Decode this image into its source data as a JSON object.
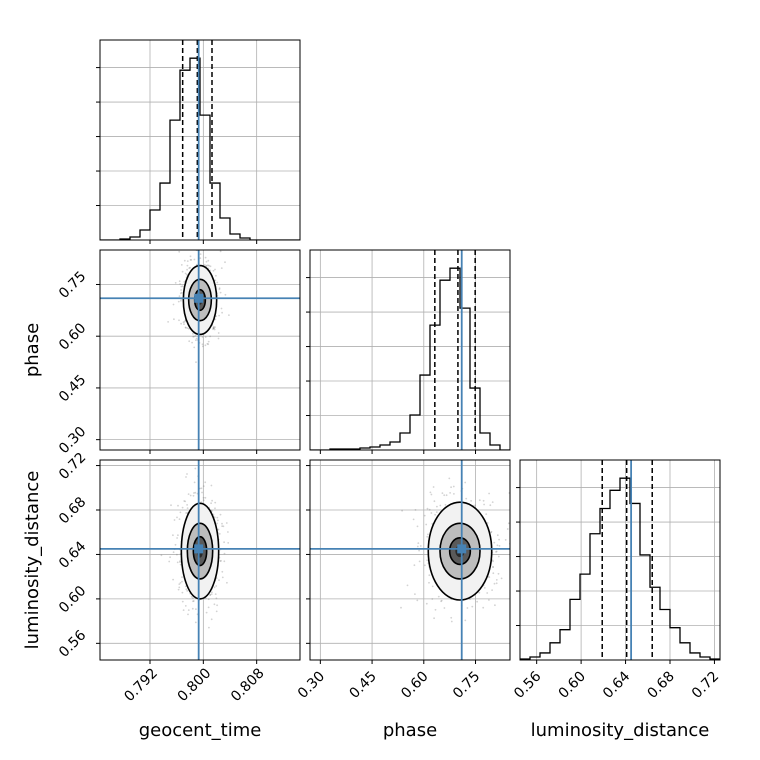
{
  "chart_data": {
    "type": "corner",
    "parameters": [
      "geocent_time",
      "phase",
      "luminosity_distance"
    ],
    "axis_labels": {
      "geocent_time": "geocent_time",
      "phase": "phase",
      "luminosity_distance": "luminosity_distance"
    },
    "ranges": {
      "geocent_time": [
        0.7845,
        0.8145
      ],
      "phase": [
        0.27,
        0.85
      ],
      "luminosity_distance": [
        0.545,
        0.725
      ]
    },
    "ticks": {
      "geocent_time": [
        "0.792",
        "0.800",
        "0.808"
      ],
      "phase": [
        "0.30",
        "0.45",
        "0.60",
        "0.75"
      ],
      "luminosity_distance": [
        "0.56",
        "0.60",
        "0.64",
        "0.68",
        "0.72"
      ]
    },
    "injection": {
      "geocent_time": 0.7993,
      "phase": 0.71,
      "luminosity_distance": 0.645
    },
    "quantiles": {
      "geocent_time": [
        0.7969,
        0.7991,
        0.8013
      ],
      "phase": [
        0.632,
        0.699,
        0.749
      ],
      "luminosity_distance": [
        0.619,
        0.641,
        0.664
      ]
    },
    "histograms": {
      "geocent_time": {
        "edges": [
          0.7845,
          0.786,
          0.7875,
          0.789,
          0.7905,
          0.792,
          0.7935,
          0.795,
          0.7965,
          0.798,
          0.7995,
          0.801,
          0.8025,
          0.804,
          0.8055,
          0.807,
          0.8085,
          0.81,
          0.8115,
          0.813,
          0.8145
        ],
        "counts": [
          0,
          0,
          1,
          3,
          10,
          30,
          57,
          120,
          170,
          182,
          125,
          57,
          22,
          6,
          2,
          0,
          0,
          0,
          0,
          0
        ]
      },
      "phase": {
        "edges": [
          0.27,
          0.299,
          0.328,
          0.357,
          0.386,
          0.415,
          0.444,
          0.473,
          0.502,
          0.531,
          0.56,
          0.589,
          0.618,
          0.647,
          0.676,
          0.705,
          0.734,
          0.763,
          0.792,
          0.821,
          0.85
        ],
        "counts": [
          0,
          0,
          1,
          1,
          1,
          2,
          3,
          5,
          8,
          17,
          35,
          75,
          125,
          170,
          182,
          142,
          62,
          17,
          5,
          0
        ]
      },
      "luminosity_distance": {
        "edges": [
          0.545,
          0.554,
          0.563,
          0.572,
          0.581,
          0.59,
          0.599,
          0.608,
          0.617,
          0.626,
          0.635,
          0.644,
          0.653,
          0.662,
          0.671,
          0.68,
          0.689,
          0.698,
          0.707,
          0.716,
          0.725
        ],
        "counts": [
          1,
          3,
          7,
          17,
          30,
          60,
          85,
          125,
          150,
          168,
          180,
          155,
          104,
          72,
          50,
          32,
          17,
          7,
          3,
          1
        ]
      }
    },
    "contours": [
      {
        "x": "geocent_time",
        "y": "phase",
        "center": [
          0.7995,
          0.705
        ],
        "radii": [
          [
            0.0008,
            0.03
          ],
          [
            0.0017,
            0.06
          ],
          [
            0.0025,
            0.1
          ]
        ]
      },
      {
        "x": "geocent_time",
        "y": "luminosity_distance",
        "center": [
          0.7995,
          0.643
        ],
        "radii": [
          [
            0.001,
            0.013
          ],
          [
            0.0019,
            0.025
          ],
          [
            0.0028,
            0.043
          ]
        ]
      },
      {
        "x": "phase",
        "y": "luminosity_distance",
        "center": [
          0.705,
          0.643
        ],
        "radii": [
          [
            0.03,
            0.012
          ],
          [
            0.058,
            0.025
          ],
          [
            0.092,
            0.044
          ]
        ]
      }
    ],
    "colors": {
      "injection": "#4682b4",
      "histogram": "#000000",
      "grid": "#b0b0b0",
      "points": "#808080"
    },
    "grid": true
  }
}
